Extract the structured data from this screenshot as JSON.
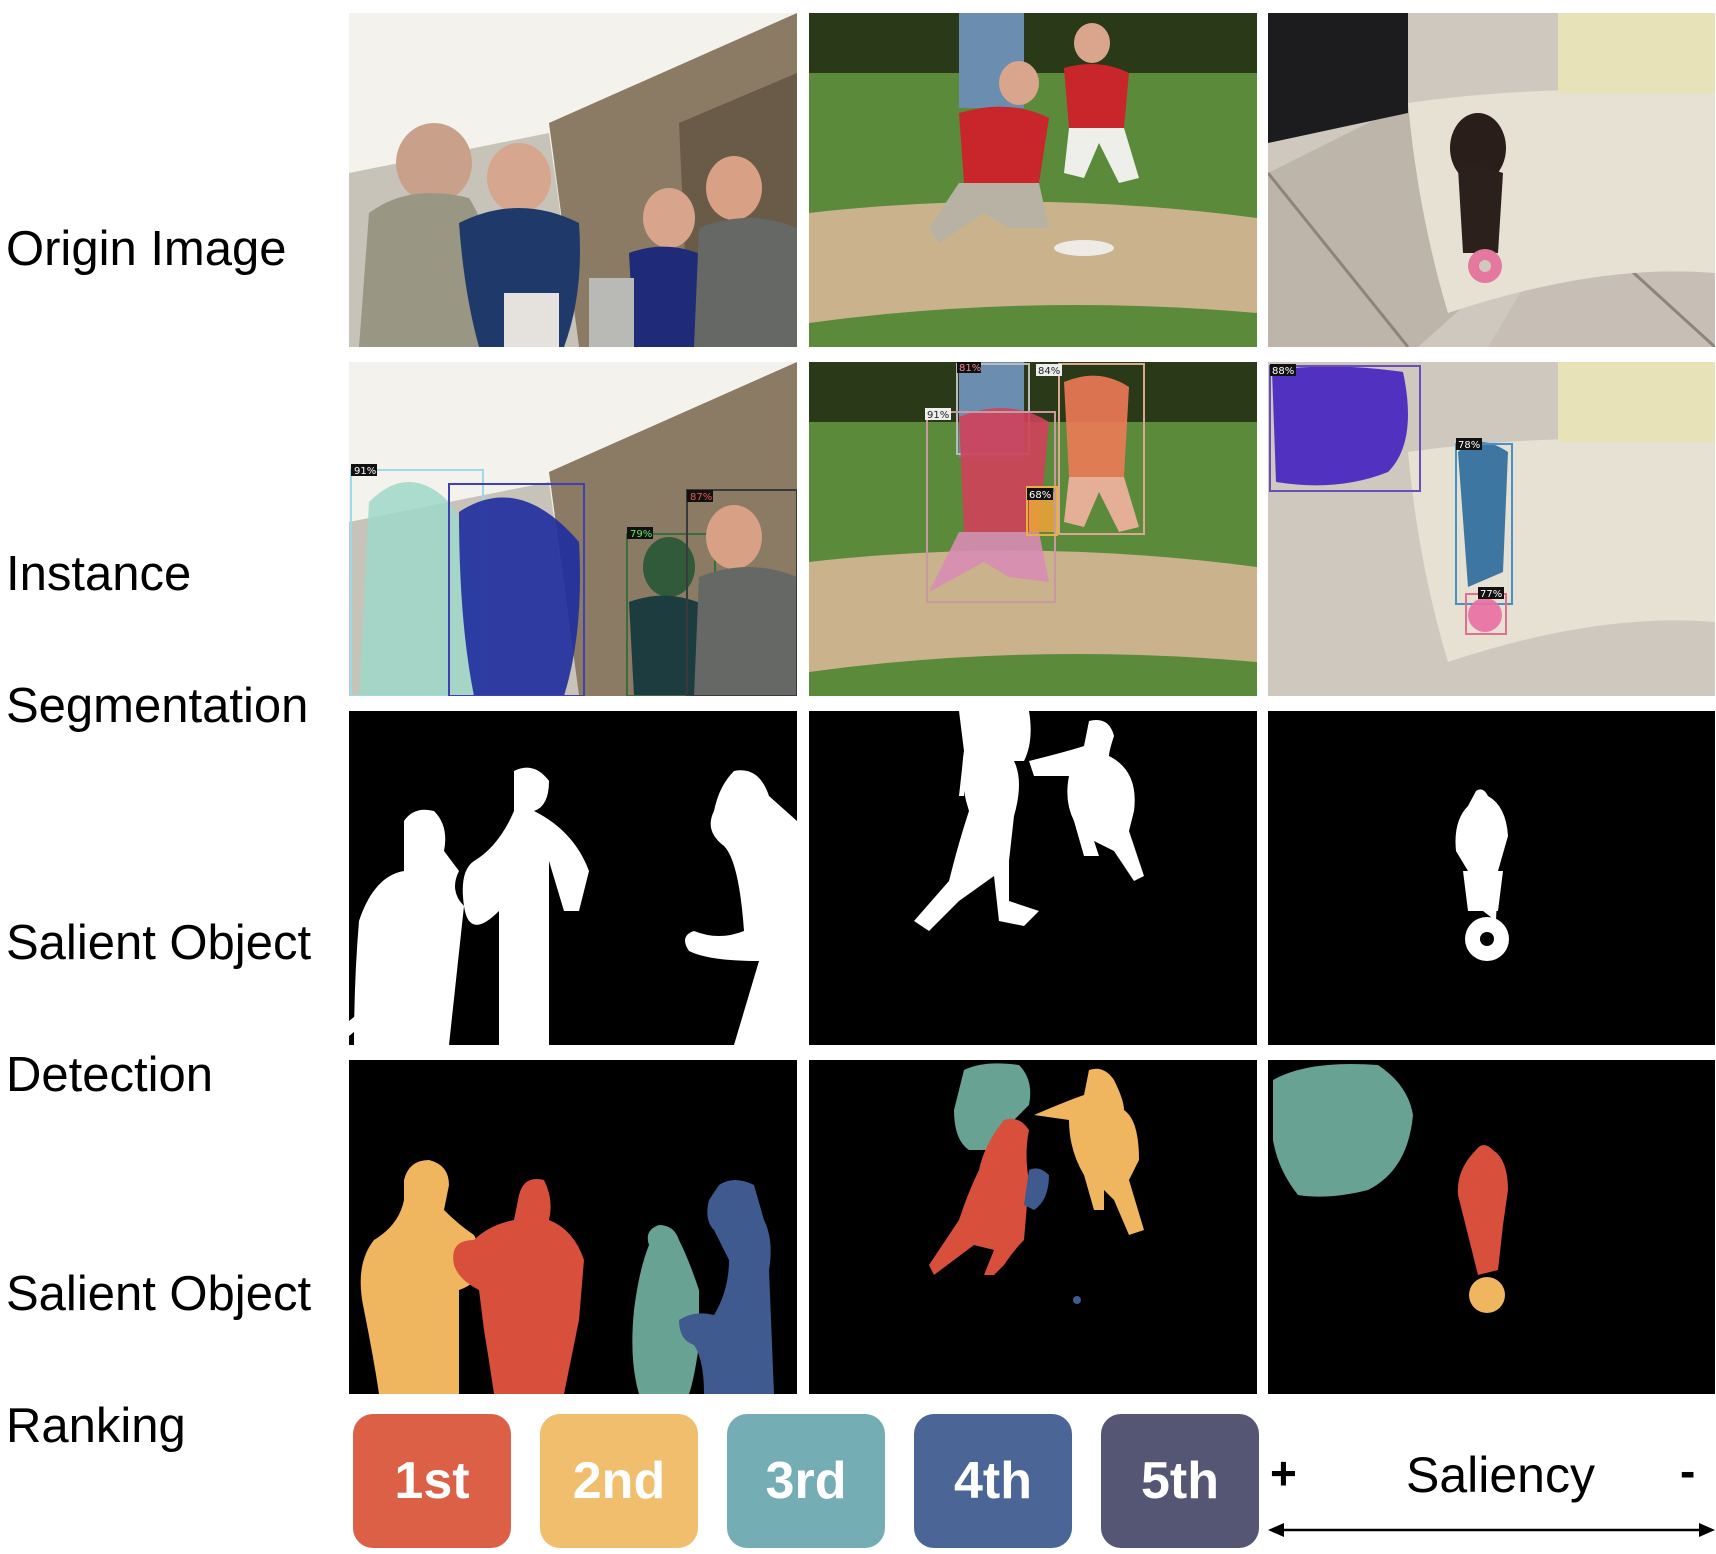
{
  "rows": [
    {
      "label": [
        "Origin Image"
      ]
    },
    {
      "label": [
        "Instance",
        "Segmentation"
      ]
    },
    {
      "label": [
        "Salient Object",
        "Detection"
      ]
    },
    {
      "label": [
        "Salient Object",
        "Ranking"
      ]
    }
  ],
  "instance_scores": {
    "col1": [
      "91%",
      "87%",
      "79%"
    ],
    "col2": [
      "81%",
      "84%",
      "91%",
      "68%"
    ],
    "col3": [
      "88%",
      "78%",
      "77%"
    ]
  },
  "legend": {
    "ranks": [
      {
        "label": "1st",
        "color": "#dc6046"
      },
      {
        "label": "2nd",
        "color": "#f0be6c"
      },
      {
        "label": "3rd",
        "color": "#74adb4"
      },
      {
        "label": "4th",
        "color": "#4a6596"
      },
      {
        "label": "5th",
        "color": "#555574"
      }
    ],
    "plus": "+",
    "word": "Saliency",
    "minus": "-"
  },
  "colors": {
    "rank1": "#d84f3c",
    "rank2": "#efb55f",
    "rank3": "#68a292",
    "rank4": "#3e5a8e",
    "mask_bg": "#000000",
    "mask_fg": "#ffffff"
  }
}
